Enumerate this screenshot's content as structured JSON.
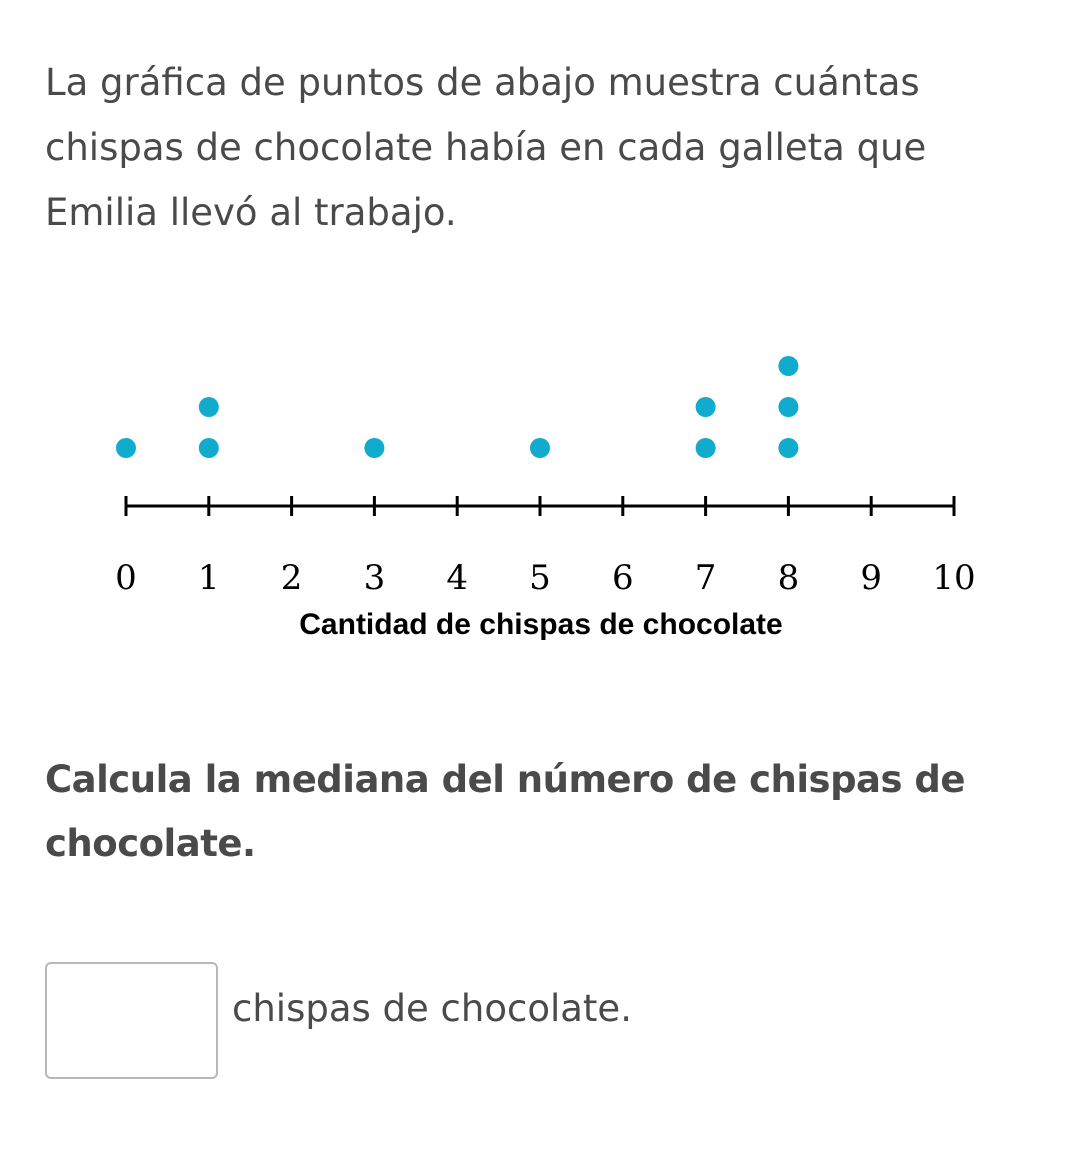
{
  "problem": {
    "intro_text": "La gráfica de puntos de abajo muestra cuántas chispas de chocolate había en cada galleta que Emilia llevó al trabajo.",
    "question_text": "Calcula la mediana del número de chispas de chocolate.",
    "answer": {
      "value": "",
      "placeholder": "",
      "suffix": "chispas de chocolate."
    }
  },
  "chart_data": {
    "type": "scatter",
    "subtype": "dot_plot",
    "title": "",
    "xlabel": "Cantidad de chispas de chocolate",
    "ylabel": "",
    "xlim": [
      0,
      10
    ],
    "ticks": [
      0,
      1,
      2,
      3,
      4,
      5,
      6,
      7,
      8,
      9,
      10
    ],
    "tick_labels": [
      "0",
      "1",
      "2",
      "3",
      "4",
      "5",
      "6",
      "7",
      "8",
      "9",
      "10"
    ],
    "x": [
      0,
      1,
      3,
      5,
      7,
      8
    ],
    "counts": [
      1,
      2,
      1,
      1,
      2,
      3
    ],
    "dot_color": "#11accd",
    "axis_color": "#000000",
    "grid": false
  }
}
